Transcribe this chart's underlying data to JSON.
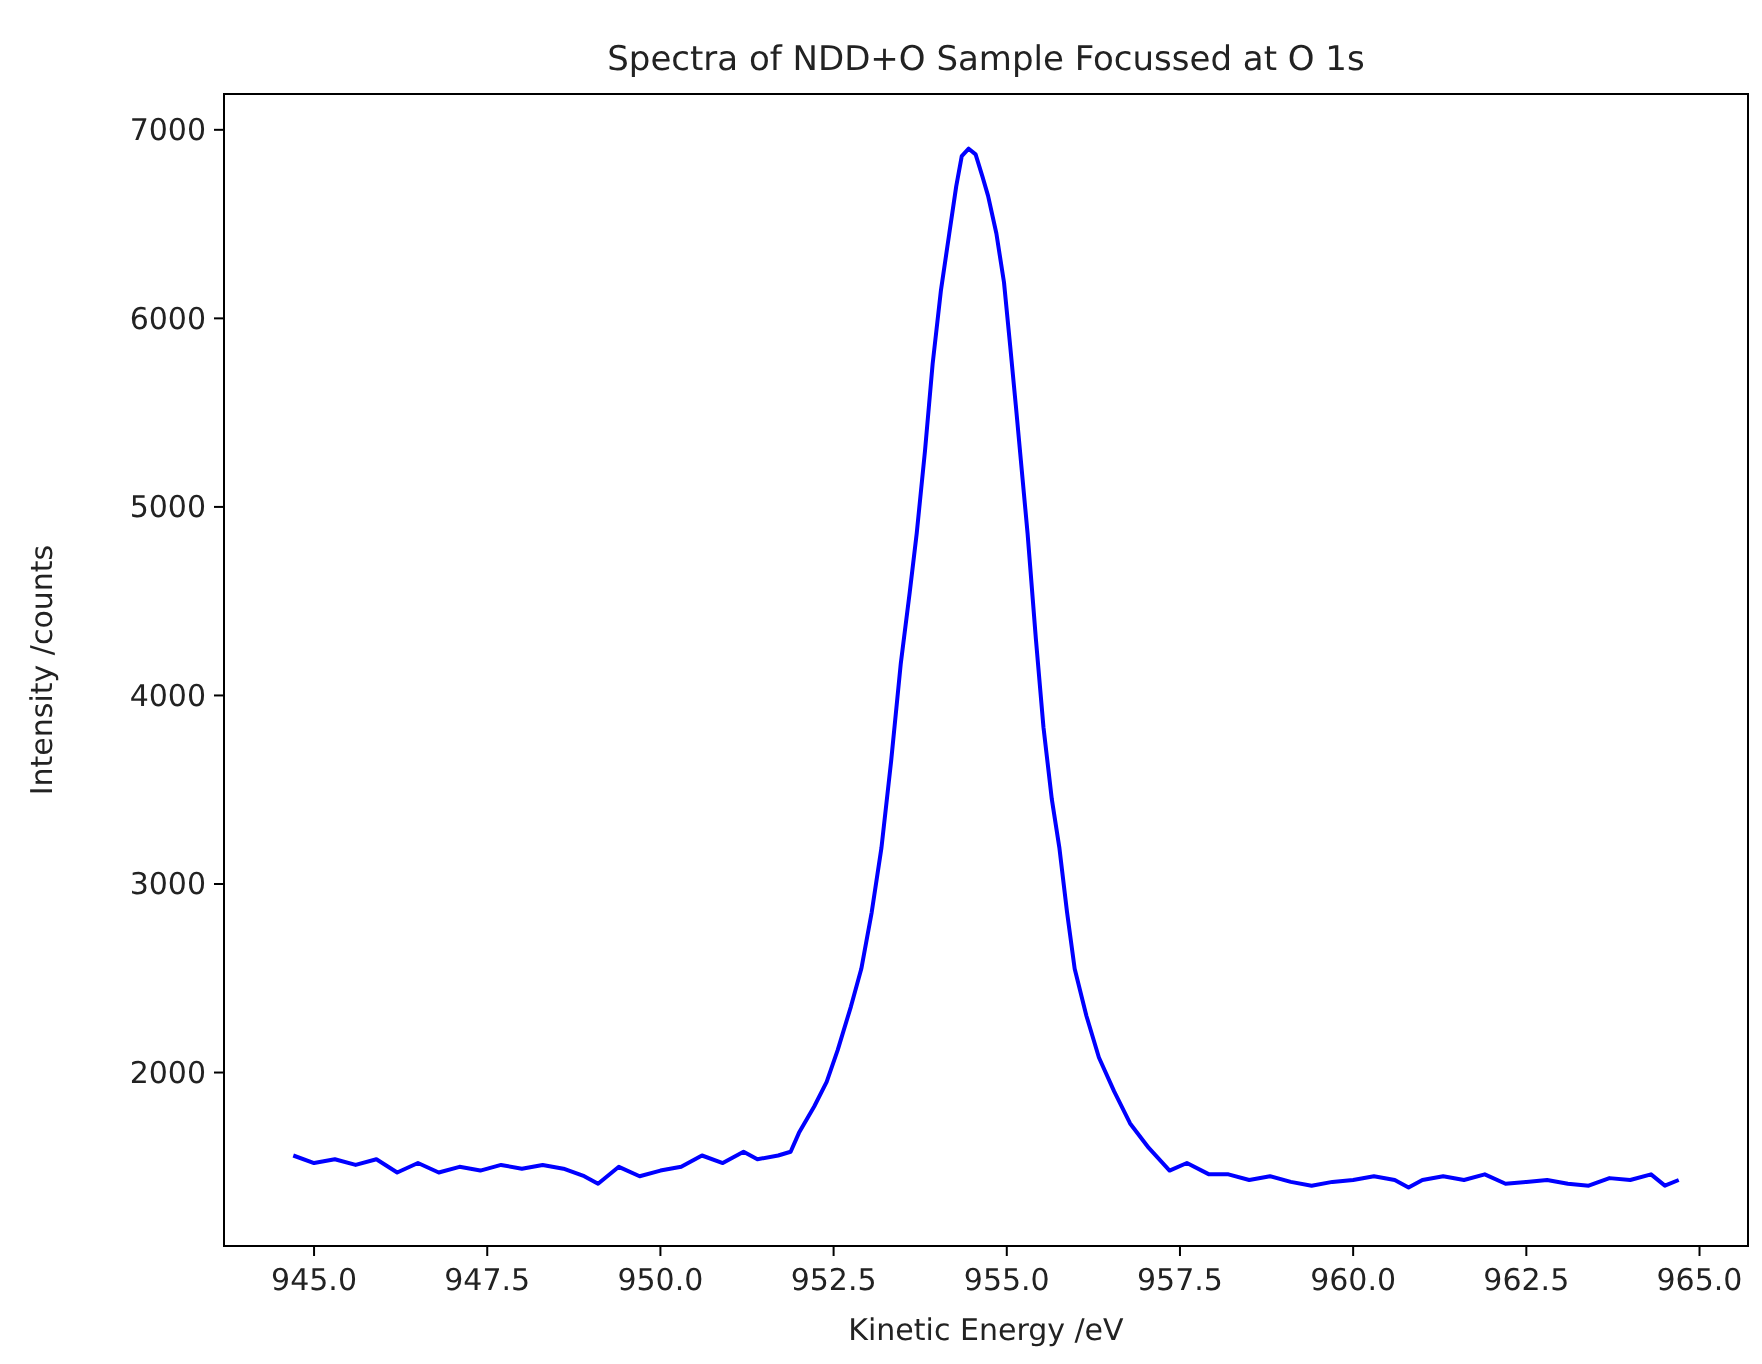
{
  "chart_data": {
    "type": "line",
    "title": "Spectra of NDD+O Sample Focussed at O 1s",
    "xlabel": "Kinetic Energy /eV",
    "ylabel": "Intensity /counts",
    "xlim": [
      943.7,
      965.7
    ],
    "ylim": [
      1080,
      7190
    ],
    "xticks": [
      {
        "value": 945,
        "label": "945.0"
      },
      {
        "value": 947.5,
        "label": "947.5"
      },
      {
        "value": 950,
        "label": "950.0"
      },
      {
        "value": 952.5,
        "label": "952.5"
      },
      {
        "value": 955,
        "label": "955.0"
      },
      {
        "value": 957.5,
        "label": "957.5"
      },
      {
        "value": 960,
        "label": "960.0"
      },
      {
        "value": 962.5,
        "label": "962.5"
      },
      {
        "value": 965,
        "label": "965.0"
      }
    ],
    "yticks": [
      2000,
      3000,
      4000,
      5000,
      6000,
      7000
    ],
    "marker": "none",
    "line_style": "solid",
    "series": [
      {
        "color": "#0000ff",
        "x": [
          944.7,
          945.0,
          945.3,
          945.6,
          945.9,
          946.2,
          946.5,
          946.8,
          947.1,
          947.4,
          947.7,
          948.0,
          948.3,
          948.6,
          948.9,
          949.1,
          949.4,
          949.7,
          950.0,
          950.3,
          950.6,
          950.9,
          951.2,
          951.4,
          951.7,
          951.88,
          952.0,
          952.22,
          952.4,
          952.56,
          952.75,
          952.9,
          953.05,
          953.19,
          953.33,
          953.47,
          953.6,
          953.7,
          953.82,
          953.93,
          954.05,
          954.17,
          954.27,
          954.35,
          954.45,
          954.55,
          954.65,
          954.73,
          954.85,
          954.96,
          955.05,
          955.13,
          955.3,
          955.42,
          955.53,
          955.65,
          955.76,
          955.87,
          955.98,
          956.15,
          956.33,
          956.55,
          956.78,
          957.05,
          957.35,
          957.6,
          957.92,
          958.2,
          958.5,
          958.8,
          959.1,
          959.4,
          959.7,
          960.0,
          960.3,
          960.6,
          960.8,
          961.0,
          961.3,
          961.6,
          961.9,
          962.2,
          962.5,
          962.8,
          963.1,
          963.4,
          963.7,
          964.0,
          964.3,
          964.5,
          964.7
        ],
        "values": [
          1560,
          1520,
          1540,
          1510,
          1540,
          1470,
          1520,
          1470,
          1500,
          1480,
          1510,
          1490,
          1510,
          1490,
          1450,
          1410,
          1500,
          1450,
          1480,
          1500,
          1560,
          1520,
          1580,
          1540,
          1560,
          1580,
          1680,
          1820,
          1950,
          2120,
          2350,
          2550,
          2850,
          3190,
          3650,
          4170,
          4550,
          4860,
          5300,
          5760,
          6150,
          6450,
          6700,
          6860,
          6900,
          6870,
          6750,
          6650,
          6450,
          6190,
          5850,
          5540,
          4860,
          4300,
          3830,
          3450,
          3190,
          2850,
          2550,
          2300,
          2080,
          1900,
          1730,
          1600,
          1480,
          1520,
          1460,
          1460,
          1430,
          1450,
          1420,
          1400,
          1420,
          1430,
          1450,
          1430,
          1390,
          1430,
          1450,
          1430,
          1460,
          1410,
          1420,
          1430,
          1410,
          1400,
          1440,
          1430,
          1460,
          1400,
          1430
        ]
      }
    ]
  }
}
